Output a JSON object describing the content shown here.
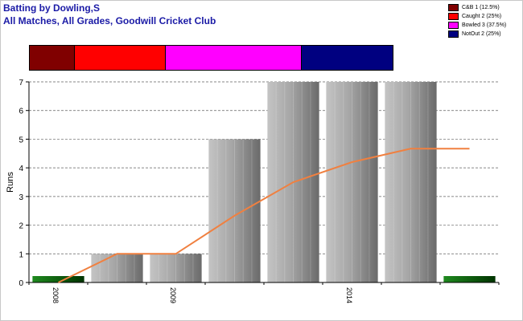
{
  "header": {
    "title_line1": "Batting by Dowling,S",
    "title_line2": "All Matches, All Grades, Goodwill Cricket Club"
  },
  "legend": [
    {
      "label": "C&B 1 (12.5%)",
      "color": "#800000"
    },
    {
      "label": "Caught 2 (25%)",
      "color": "#ff0000"
    },
    {
      "label": "Bowled 3 (37.5%)",
      "color": "#ff00ff"
    },
    {
      "label": "NotOut 2 (25%)",
      "color": "#000080"
    }
  ],
  "dismissals": [
    {
      "name": "C&B",
      "count": 1,
      "color": "#800000"
    },
    {
      "name": "Caught",
      "count": 2,
      "color": "#ff0000"
    },
    {
      "name": "Bowled",
      "count": 3,
      "color": "#ff00ff"
    },
    {
      "name": "NotOut",
      "count": 2,
      "color": "#000080"
    }
  ],
  "chart_data": {
    "type": "bar",
    "ylabel": "Runs",
    "xlabel": "",
    "ylim": [
      0,
      7
    ],
    "yticks": [
      0,
      1,
      2,
      3,
      4,
      5,
      6,
      7
    ],
    "grid": true,
    "innings_runs": [
      0,
      1,
      1,
      5,
      7,
      7,
      7,
      0
    ],
    "innings_not_out": [
      true,
      false,
      false,
      false,
      false,
      false,
      false,
      true
    ],
    "x_tick_labels": [
      {
        "index": 0,
        "label": "2008"
      },
      {
        "index": 2,
        "label": "2009"
      },
      {
        "index": 5,
        "label": "2014"
      }
    ],
    "series": [
      {
        "values": [
          0,
          1,
          1,
          5,
          7,
          7,
          7,
          0
        ]
      },
      {
        "values": [
          0,
          1,
          1,
          2.33,
          3.5,
          4.2,
          4.67,
          4.67
        ]
      }
    ],
    "colors": {
      "bar": "#a8a8a8",
      "not_out_bar": "#006400",
      "average_line": "#f08040"
    }
  }
}
